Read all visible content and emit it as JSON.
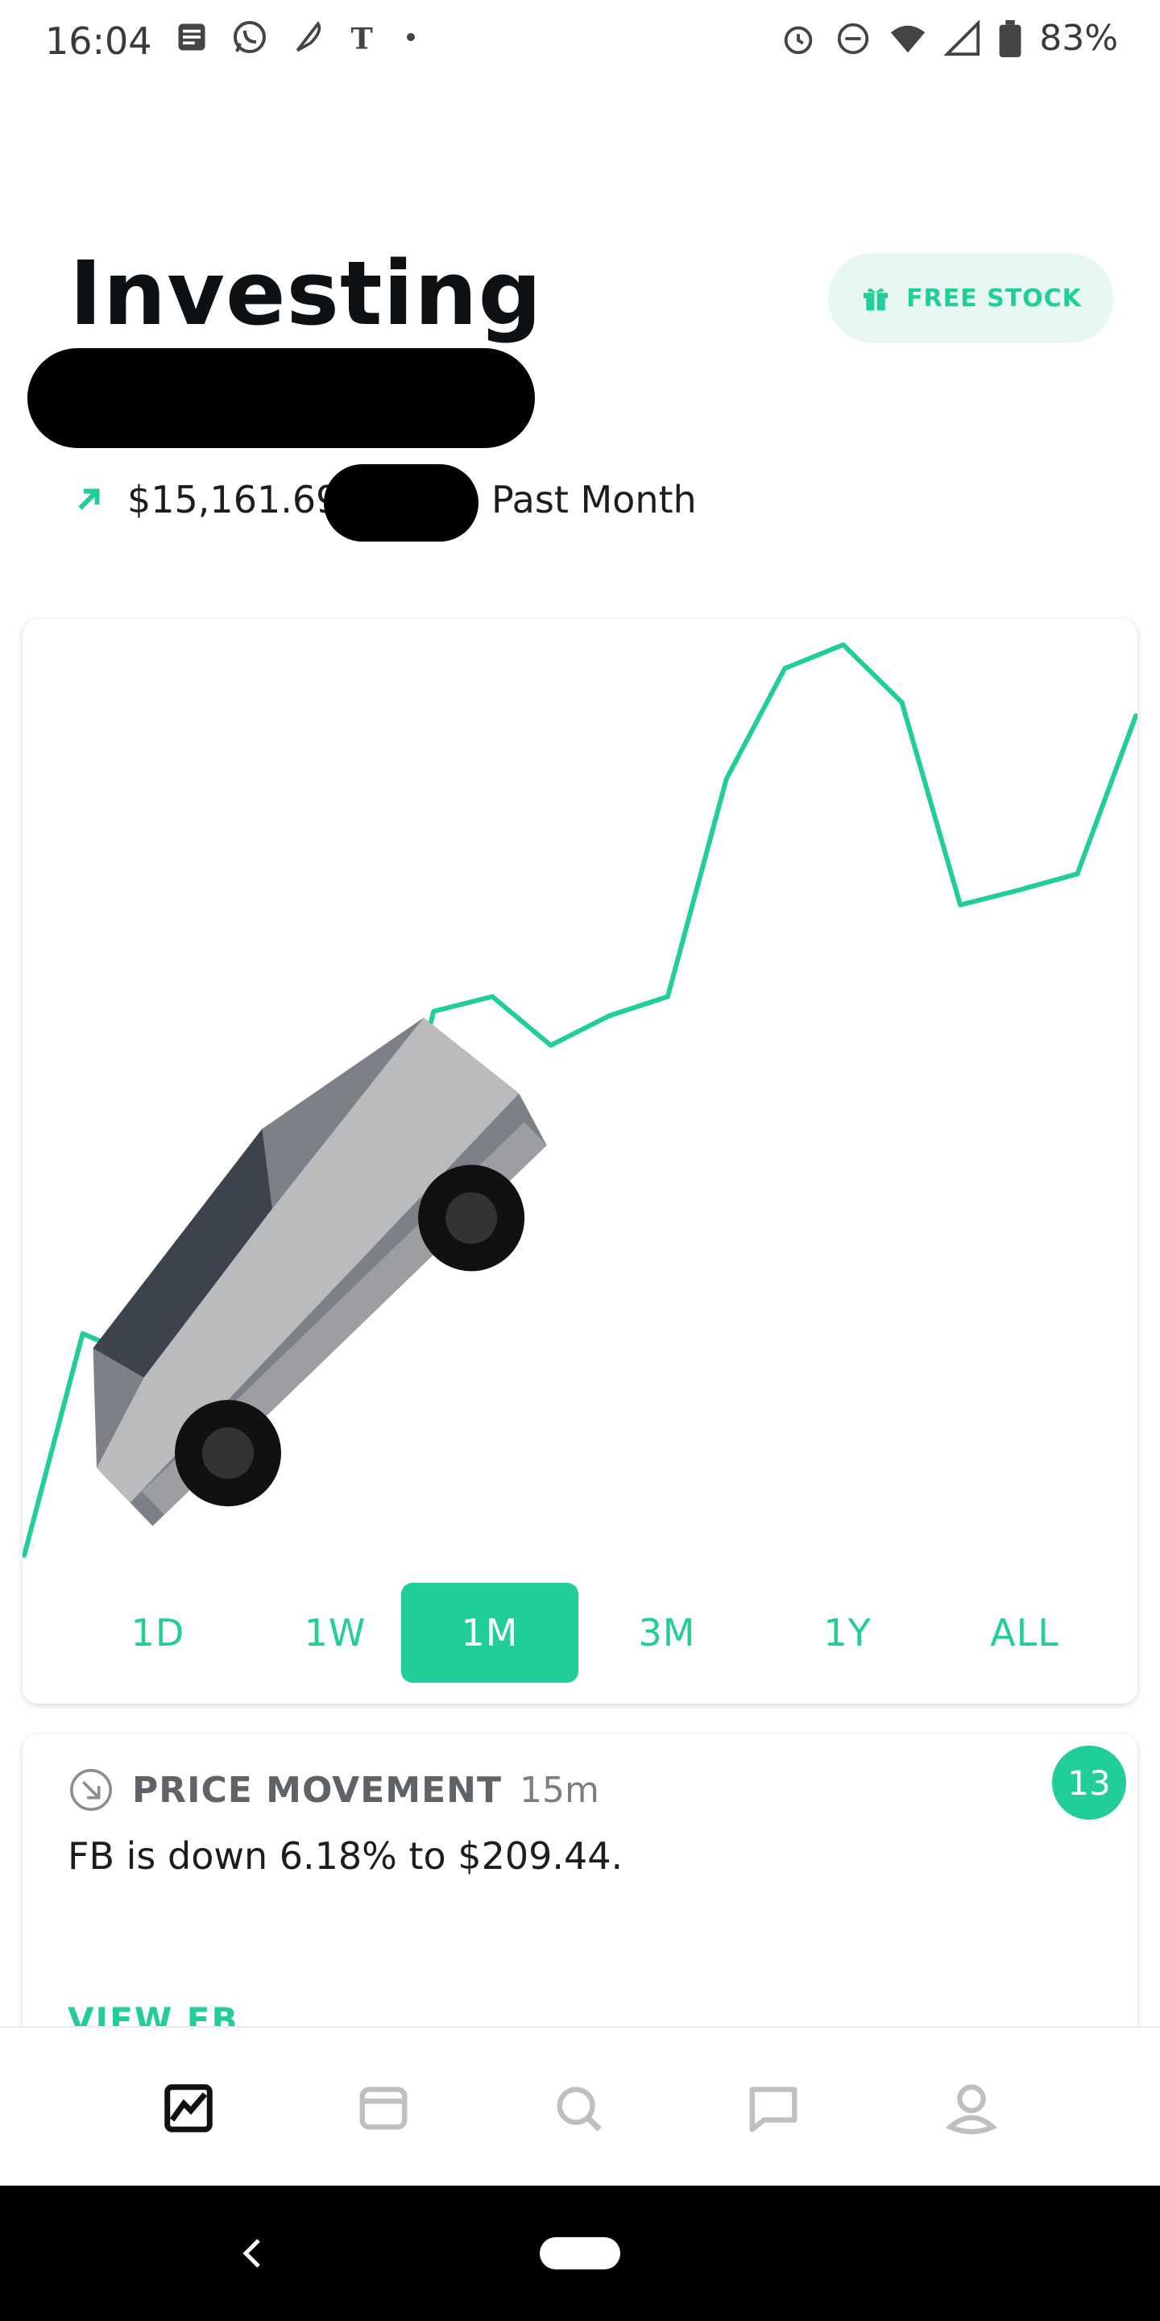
{
  "status_bar": {
    "time": "16:04",
    "left_icons": [
      "notes-icon",
      "whatsapp-icon",
      "feather-icon",
      "nyt-icon",
      "dot-icon"
    ],
    "right_icons": [
      "alarm-icon",
      "do-not-disturb-icon",
      "wifi-icon",
      "signal-icon",
      "battery-icon"
    ],
    "battery": "83%"
  },
  "header": {
    "title": "Investing",
    "free_stock": "FREE STOCK",
    "gain_amount": "$15,161.69",
    "gain_period": "Past Month"
  },
  "chart_data": {
    "type": "line",
    "color": "#21ce99",
    "x": [
      0,
      1,
      2,
      3,
      4,
      5,
      6,
      7,
      8,
      9,
      10,
      11,
      12,
      13,
      14,
      15,
      16,
      17,
      18,
      19
    ],
    "values": [
      0,
      1.5,
      1.33,
      1.62,
      2.18,
      2.42,
      2.19,
      3.68,
      3.78,
      3.45,
      3.65,
      3.78,
      5.25,
      6.0,
      6.16,
      5.77,
      4.4,
      4.5,
      4.61,
      5.68
    ],
    "grid": false,
    "legend": false
  },
  "range_tabs": [
    {
      "label": "1D",
      "active": false
    },
    {
      "label": "1W",
      "active": false
    },
    {
      "label": "1M",
      "active": true
    },
    {
      "label": "3M",
      "active": false
    },
    {
      "label": "1Y",
      "active": false
    },
    {
      "label": "ALL",
      "active": false
    }
  ],
  "news": {
    "category": "PRICE MOVEMENT",
    "time": "15m",
    "text": "FB is down 6.18% to $209.44.",
    "link": "VIEW FB",
    "badge_count": "13"
  },
  "bottom_nav": [
    "portfolio-icon",
    "wallet-icon",
    "search-icon",
    "messages-icon",
    "account-icon"
  ],
  "colors": {
    "accent": "#21ce99",
    "accent_light": "#e6f8f1"
  }
}
